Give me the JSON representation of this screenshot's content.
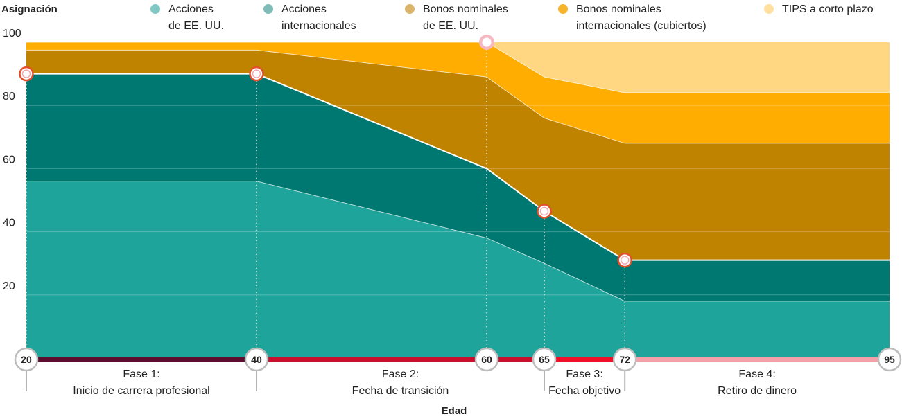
{
  "chart_data": {
    "type": "area",
    "ylabel": "Asignación",
    "xlabel": "Edad",
    "ylim": [
      0,
      100
    ],
    "yticks": [
      20,
      40,
      60,
      80,
      100
    ],
    "x": [
      20,
      40,
      60,
      65,
      72,
      95
    ],
    "x_labels": [
      "20",
      "40",
      "60",
      "65",
      "72",
      "95"
    ],
    "stacked": true,
    "series": [
      {
        "name": "Acciones de EE. UU.",
        "legend_lines": [
          "Acciones",
          "de EE. UU."
        ],
        "color": "#1ea49a",
        "values": [
          56,
          56,
          38,
          30,
          18,
          18
        ]
      },
      {
        "name": "Acciones internacionales",
        "legend_lines": [
          "Acciones",
          "internacionales"
        ],
        "color": "#007872",
        "values": [
          34,
          34,
          22,
          16.5,
          13,
          13
        ]
      },
      {
        "name": "Bonos nominales de EE. UU.",
        "legend_lines": [
          "Bonos nominales",
          "de EE. UU."
        ],
        "color": "#bf8300",
        "values": [
          7.5,
          7.5,
          29,
          29.5,
          37,
          37
        ]
      },
      {
        "name": "Bonos nominales internacionales (cubiertos)",
        "legend_lines": [
          "Bonos nominales",
          "internacionales (cubiertos)"
        ],
        "color": "#ffad00",
        "values": [
          2.5,
          2.5,
          11,
          13,
          16,
          16
        ]
      },
      {
        "name": "TIPS a corto plazo",
        "legend_lines": [
          "TIPS a corto plazo"
        ],
        "color": "#ffd782",
        "values": [
          0,
          0,
          0,
          11,
          16,
          16
        ]
      }
    ],
    "legend_dot_colors": [
      "#7fc8c4",
      "#7fbcb8",
      "#d9b469",
      "#f7b32a",
      "#ffe0a0"
    ],
    "equity_markers": [
      {
        "x": 20,
        "y": 90
      },
      {
        "x": 40,
        "y": 90
      },
      {
        "x": 65,
        "y": 46.5
      },
      {
        "x": 72,
        "y": 31
      }
    ],
    "top_marker": {
      "x": 60,
      "y": 100
    },
    "phases": [
      {
        "from": 20,
        "to": 40,
        "color": "#5e0d2f",
        "lines": [
          "Fase 1:",
          "Inicio de carrera profesional"
        ]
      },
      {
        "from": 40,
        "to": 65,
        "color": "#c8102e",
        "lines": [
          "Fase 2:",
          "Fecha de transición"
        ]
      },
      {
        "from": 65,
        "to": 72,
        "color": "#f0102a",
        "lines": [
          "Fase 3:",
          "Fecha objetivo"
        ]
      },
      {
        "from": 72,
        "to": 95,
        "color": "#f3a0a8",
        "lines": [
          "Fase 4:",
          "Retiro de dinero"
        ]
      }
    ],
    "grid": true,
    "legend_position": "top"
  }
}
